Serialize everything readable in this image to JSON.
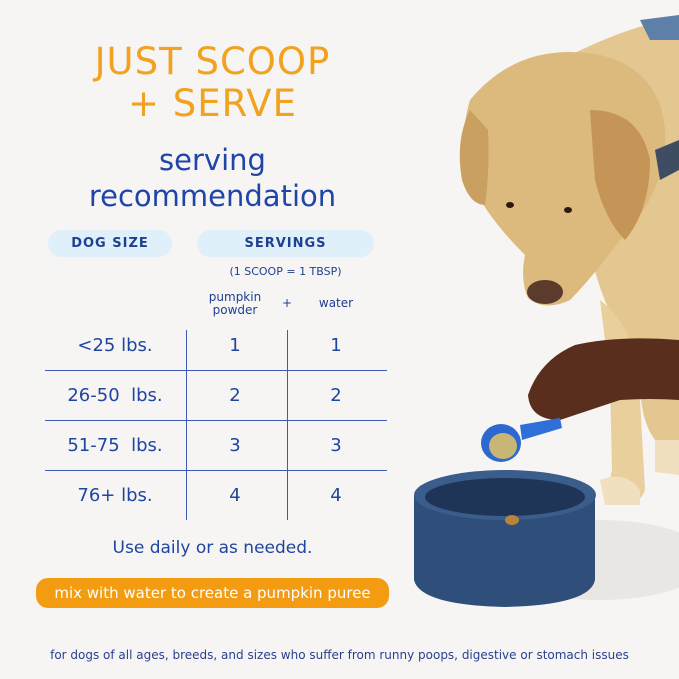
{
  "headline": [
    "JUST SCOOP",
    "+ SERVE"
  ],
  "subheading": [
    "serving",
    "recommendation"
  ],
  "table": {
    "headers": {
      "dog_size": "DOG SIZE",
      "servings": "SERVINGS"
    },
    "scoop_note": "(1 SCOOP = 1 TBSP)",
    "columns": {
      "powder": "pumpkin powder",
      "plus": "+",
      "water": "water"
    },
    "rows": [
      {
        "size": "<25 lbs.",
        "powder": "1",
        "water": "1"
      },
      {
        "size": "26-50  lbs.",
        "powder": "2",
        "water": "2"
      },
      {
        "size": "51-75  lbs.",
        "powder": "3",
        "water": "3"
      },
      {
        "size": "76+ lbs.",
        "powder": "4",
        "water": "4"
      }
    ]
  },
  "usage_note": "Use daily or as needed.",
  "mix_banner": "mix with water to create a pumpkin puree",
  "footer": "for dogs of all ages, breeds, and sizes who suffer from runny poops, digestive or stomach issues",
  "colors": {
    "orange": "#f2a21f",
    "blue": "#1f45a0",
    "pill": "#dff0fb",
    "bowl": "#2f4f7a"
  }
}
